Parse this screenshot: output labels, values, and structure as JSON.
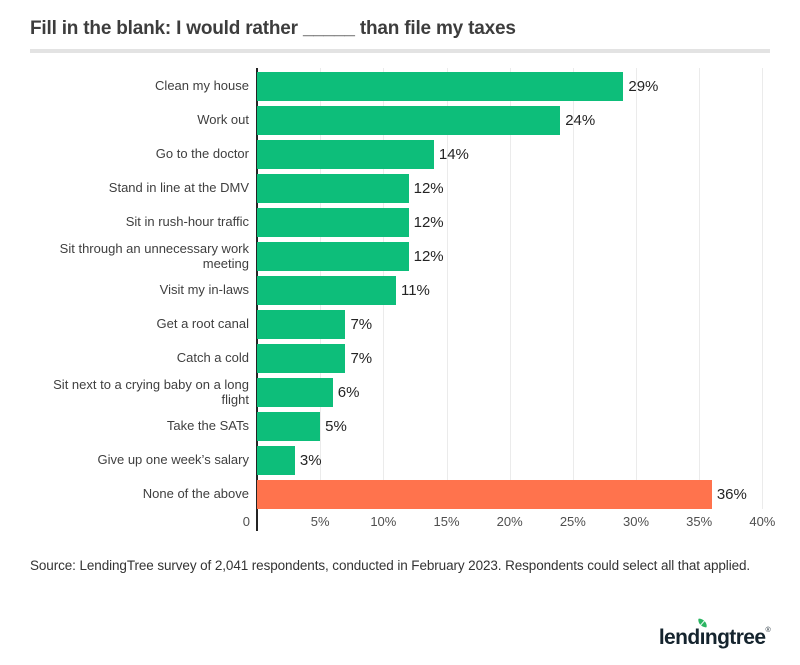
{
  "title": "Fill in the blank: I would rather _____ than file my taxes",
  "source": "Source: LendingTree survey of 2,041 respondents, conducted in February 2023. Respondents could select all that applied.",
  "logo": {
    "name": "lendingtree",
    "text_before": "lend",
    "text_i": "ı",
    "text_after": "ngtree",
    "trademark": "®"
  },
  "colors": {
    "bar_green": "#0dbe7a",
    "bar_orange": "#ff734d",
    "axis_line": "#242424",
    "gridline": "#ebebeb",
    "title_text": "#3d3d3d",
    "logo_navy": "#15242e",
    "leaf_green": "#2bb562"
  },
  "chart_data": {
    "type": "bar",
    "orientation": "horizontal",
    "title": "Fill in the blank: I would rather _____ than file my taxes",
    "xlabel": "",
    "ylabel": "",
    "xlim": [
      0,
      41
    ],
    "grid": "vertical gridlines every 5%",
    "legend": "none",
    "categories": [
      "Clean my house",
      "Work out",
      "Go to the doctor",
      "Stand in line at the DMV",
      "Sit in rush-hour traffic",
      "Sit through an unnecessary work meeting",
      "Visit my in-laws",
      "Get a root canal",
      "Catch a cold",
      "Sit next to a crying baby on a long flight",
      "Take the SATs",
      "Give up one week’s salary",
      "None of the above"
    ],
    "values": [
      29,
      24,
      14,
      12,
      12,
      12,
      11,
      7,
      7,
      6,
      5,
      3,
      36
    ],
    "value_labels": [
      "29%",
      "24%",
      "14%",
      "12%",
      "12%",
      "12%",
      "11%",
      "7%",
      "7%",
      "6%",
      "5%",
      "3%",
      "36%"
    ],
    "highlight_category": "None of the above",
    "ticks": [
      {
        "value": 0,
        "label": "0"
      },
      {
        "value": 5,
        "label": "5%"
      },
      {
        "value": 10,
        "label": "10%"
      },
      {
        "value": 15,
        "label": "15%"
      },
      {
        "value": 20,
        "label": "20%"
      },
      {
        "value": 25,
        "label": "25%"
      },
      {
        "value": 30,
        "label": "30%"
      },
      {
        "value": 35,
        "label": "35%"
      },
      {
        "value": 40,
        "label": "40%"
      }
    ]
  }
}
